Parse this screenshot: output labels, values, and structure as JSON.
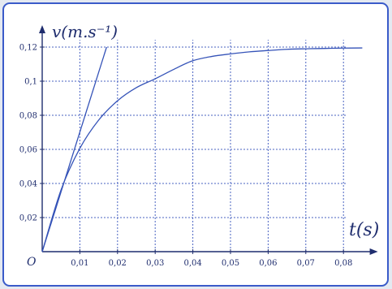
{
  "chart_data": {
    "type": "line",
    "title": "",
    "xlabel": "t(s)",
    "ylabel": "v(m.s⁻¹)",
    "origin_label": "O",
    "xlim": [
      0,
      0.09
    ],
    "ylim": [
      0,
      0.13
    ],
    "x_ticks": [
      0.01,
      0.02,
      0.03,
      0.04,
      0.05,
      0.06,
      0.07,
      0.08
    ],
    "x_tick_labels": [
      "0,01",
      "0,02",
      "0,03",
      "0,04",
      "0,05",
      "0,06",
      "0,07",
      "0,08"
    ],
    "y_ticks": [
      0.02,
      0.04,
      0.06,
      0.08,
      0.1,
      0.12
    ],
    "y_tick_labels": [
      "0,02",
      "0,04",
      "0,06",
      "0,08",
      "0,1",
      "0,12"
    ],
    "grid": true,
    "colors": {
      "background": "#ffffff",
      "line": "#3553b8",
      "axis": "#1f2d6e",
      "grid": "#4a63c2",
      "frame": "#3a5bc9"
    },
    "series": [
      {
        "kind": "curve",
        "x": [
          0,
          0.005,
          0.01,
          0.015,
          0.02,
          0.025,
          0.03,
          0.035,
          0.04,
          0.045,
          0.05,
          0.055,
          0.06,
          0.065,
          0.07,
          0.075,
          0.08,
          0.085
        ],
        "y": [
          0,
          0.0362,
          0.0606,
          0.0772,
          0.0885,
          0.0962,
          0.1014,
          0.107,
          0.112,
          0.1145,
          0.116,
          0.1172,
          0.118,
          0.1187,
          0.119,
          0.1192,
          0.1194,
          0.1195
        ]
      },
      {
        "kind": "tangent",
        "x": [
          0,
          0.0171
        ],
        "y": [
          0,
          0.12
        ]
      }
    ]
  }
}
